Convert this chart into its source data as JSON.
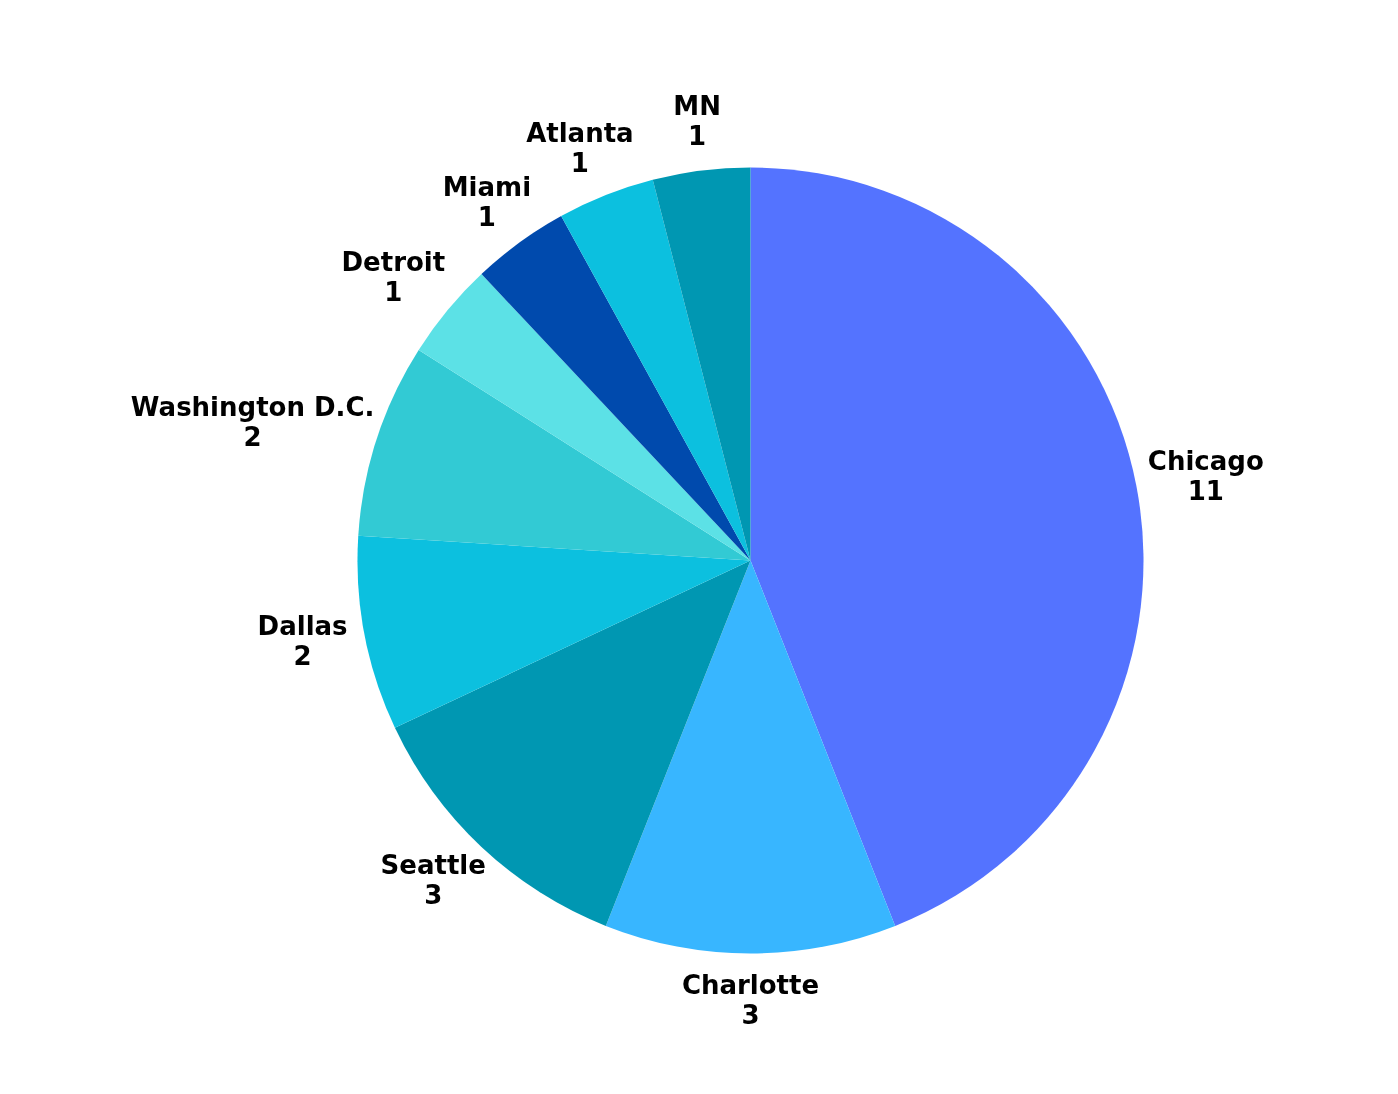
{
  "chart_data": {
    "type": "pie",
    "categories": [
      "Chicago",
      "Charlotte",
      "Seattle",
      "Dallas",
      "Washington D.C.",
      "Detroit",
      "Miami",
      "Atlanta",
      "MN"
    ],
    "values": [
      11,
      3,
      3,
      2,
      2,
      1,
      1,
      1,
      1
    ],
    "colors": [
      "#5473ff",
      "#38b6ff",
      "#0097b2",
      "#0cc0df",
      "#32cad4",
      "#5ce1e6",
      "#004aad",
      "#0cc0df",
      "#0097b2"
    ],
    "data_labels": true
  }
}
